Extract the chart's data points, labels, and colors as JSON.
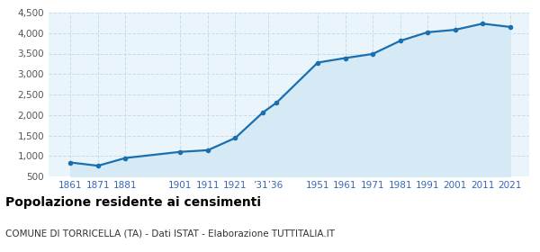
{
  "years": [
    1861,
    1871,
    1881,
    1901,
    1911,
    1921,
    1931,
    1936,
    1951,
    1961,
    1971,
    1981,
    1991,
    2001,
    2011,
    2021
  ],
  "population": [
    840,
    760,
    950,
    1100,
    1140,
    1440,
    2060,
    2300,
    3280,
    3390,
    3490,
    3810,
    4020,
    4080,
    4230,
    4150
  ],
  "line_color": "#1a6faf",
  "fill_color": "#d6eaf5",
  "marker_color": "#1a6faf",
  "grid_color": "#c8dcea",
  "background_color": "#eaf4fb",
  "title": "Popolazione residente ai censimenti",
  "subtitle": "COMUNE DI TORRICELLA (TA) - Dati ISTAT - Elaborazione TUTTITALIA.IT",
  "ylim": [
    500,
    4500
  ],
  "yticks": [
    500,
    1000,
    1500,
    2000,
    2500,
    3000,
    3500,
    4000,
    4500
  ],
  "xlim_left": 1853,
  "xlim_right": 2028,
  "title_fontsize": 10,
  "subtitle_fontsize": 7.5,
  "tick_label_color": "#3366bb",
  "ytick_label_color": "#555555"
}
